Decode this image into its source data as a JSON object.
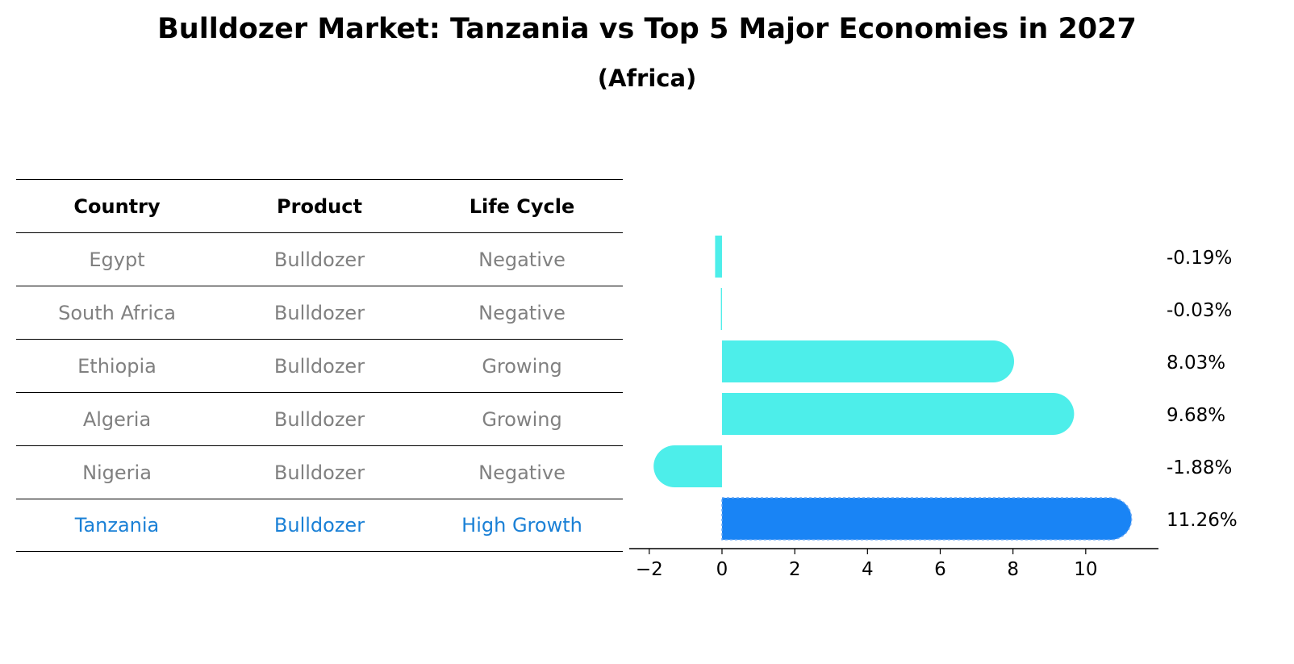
{
  "title": "Bulldozer Market: Tanzania vs Top 5 Major Economies in 2027",
  "subtitle": "(Africa)",
  "table": {
    "headers": [
      "Country",
      "Product",
      "Life Cycle"
    ],
    "rows": [
      [
        "Egypt",
        "Bulldozer",
        "Negative"
      ],
      [
        "South Africa",
        "Bulldozer",
        "Negative"
      ],
      [
        "Ethiopia",
        "Bulldozer",
        "Growing"
      ],
      [
        "Algeria",
        "Bulldozer",
        "Growing"
      ],
      [
        "Nigeria",
        "Bulldozer",
        "Negative"
      ],
      [
        "Tanzania",
        "Bulldozer",
        "High Growth"
      ]
    ],
    "highlight_row": 5
  },
  "chart_data": {
    "type": "bar",
    "orientation": "horizontal",
    "categories": [
      "Egypt",
      "South Africa",
      "Ethiopia",
      "Algeria",
      "Nigeria",
      "Tanzania"
    ],
    "values": [
      -0.19,
      -0.03,
      8.03,
      9.68,
      -1.88,
      11.26
    ],
    "value_labels": [
      "-0.19%",
      "-0.03%",
      "8.03%",
      "9.68%",
      "-1.88%",
      "11.26%"
    ],
    "xticks": [
      -2,
      0,
      2,
      4,
      6,
      8,
      10
    ],
    "xtick_labels": [
      "−2",
      "0",
      "2",
      "4",
      "6",
      "8",
      "10"
    ],
    "xlim": [
      -2.55,
      12.0
    ],
    "grid": false,
    "colors": {
      "default": "#4deeea",
      "highlight": "#1984f5"
    },
    "highlight_index": 5
  }
}
